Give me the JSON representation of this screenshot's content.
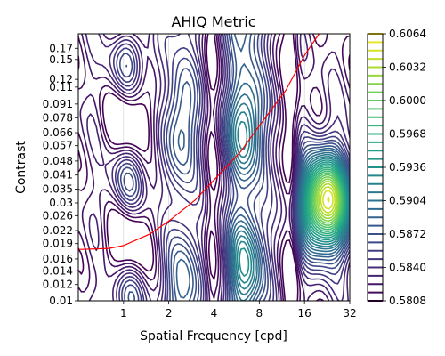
{
  "chart_data": {
    "type": "contour",
    "title": "AHIQ Metric",
    "xlabel": "Spatial Frequency [cpd]",
    "ylabel": "Contrast",
    "xscale": "log2",
    "yscale": "log",
    "xlim": [
      0.5,
      32
    ],
    "ylim": [
      0.01,
      0.2
    ],
    "x_ticks": [
      1,
      2,
      4,
      8,
      16,
      32
    ],
    "x_tick_labels": [
      "1",
      "2",
      "4",
      "8",
      "16",
      "32"
    ],
    "y_ticks": [
      0.01,
      0.012,
      0.014,
      0.016,
      0.019,
      0.022,
      0.026,
      0.03,
      0.035,
      0.041,
      0.048,
      0.057,
      0.066,
      0.078,
      0.091,
      0.11,
      0.12,
      0.15,
      0.17
    ],
    "y_tick_labels": [
      "0.01",
      "0.012",
      "0.014",
      "0.016",
      "0.019",
      "0.022",
      "0.026",
      "0.03",
      "0.035",
      "0.041",
      "0.048",
      "0.057",
      "0.066",
      "0.078",
      "0.091",
      "0.11",
      "0.12",
      "0.15",
      "0.17"
    ],
    "colormap": "viridis",
    "colorbar": {
      "ticks": [
        0.5808,
        0.584,
        0.5872,
        0.5904,
        0.5936,
        0.5968,
        0.6,
        0.6032,
        0.6064
      ],
      "tick_labels": [
        "0.5808",
        "0.5840",
        "0.5872",
        "0.5904",
        "0.5936",
        "0.5968",
        "0.6000",
        "0.6032",
        "0.6064"
      ],
      "range": [
        0.5808,
        0.6064
      ]
    },
    "contour_levels": {
      "min": 0.5808,
      "max": 0.6064,
      "step": 0.0008
    },
    "field_features": [
      {
        "kind": "peak",
        "x": 22,
        "y": 0.03,
        "value": 0.6064
      },
      {
        "kind": "ridge",
        "x": 6.5,
        "value": 0.5925
      },
      {
        "kind": "ridge",
        "x": 2.5,
        "value": 0.5895
      },
      {
        "kind": "minimum-band",
        "x": 13,
        "value": 0.581
      },
      {
        "kind": "minimum-band",
        "x": 0.8,
        "value": 0.5825
      }
    ],
    "csf_curve": {
      "color": "#ff0000",
      "x": [
        0.5,
        0.8,
        1,
        1.5,
        2,
        3,
        4,
        6,
        8,
        12,
        16,
        20
      ],
      "y": [
        0.0178,
        0.018,
        0.0186,
        0.0212,
        0.0245,
        0.031,
        0.0388,
        0.0532,
        0.0712,
        0.106,
        0.157,
        0.2
      ]
    },
    "grid": true
  }
}
